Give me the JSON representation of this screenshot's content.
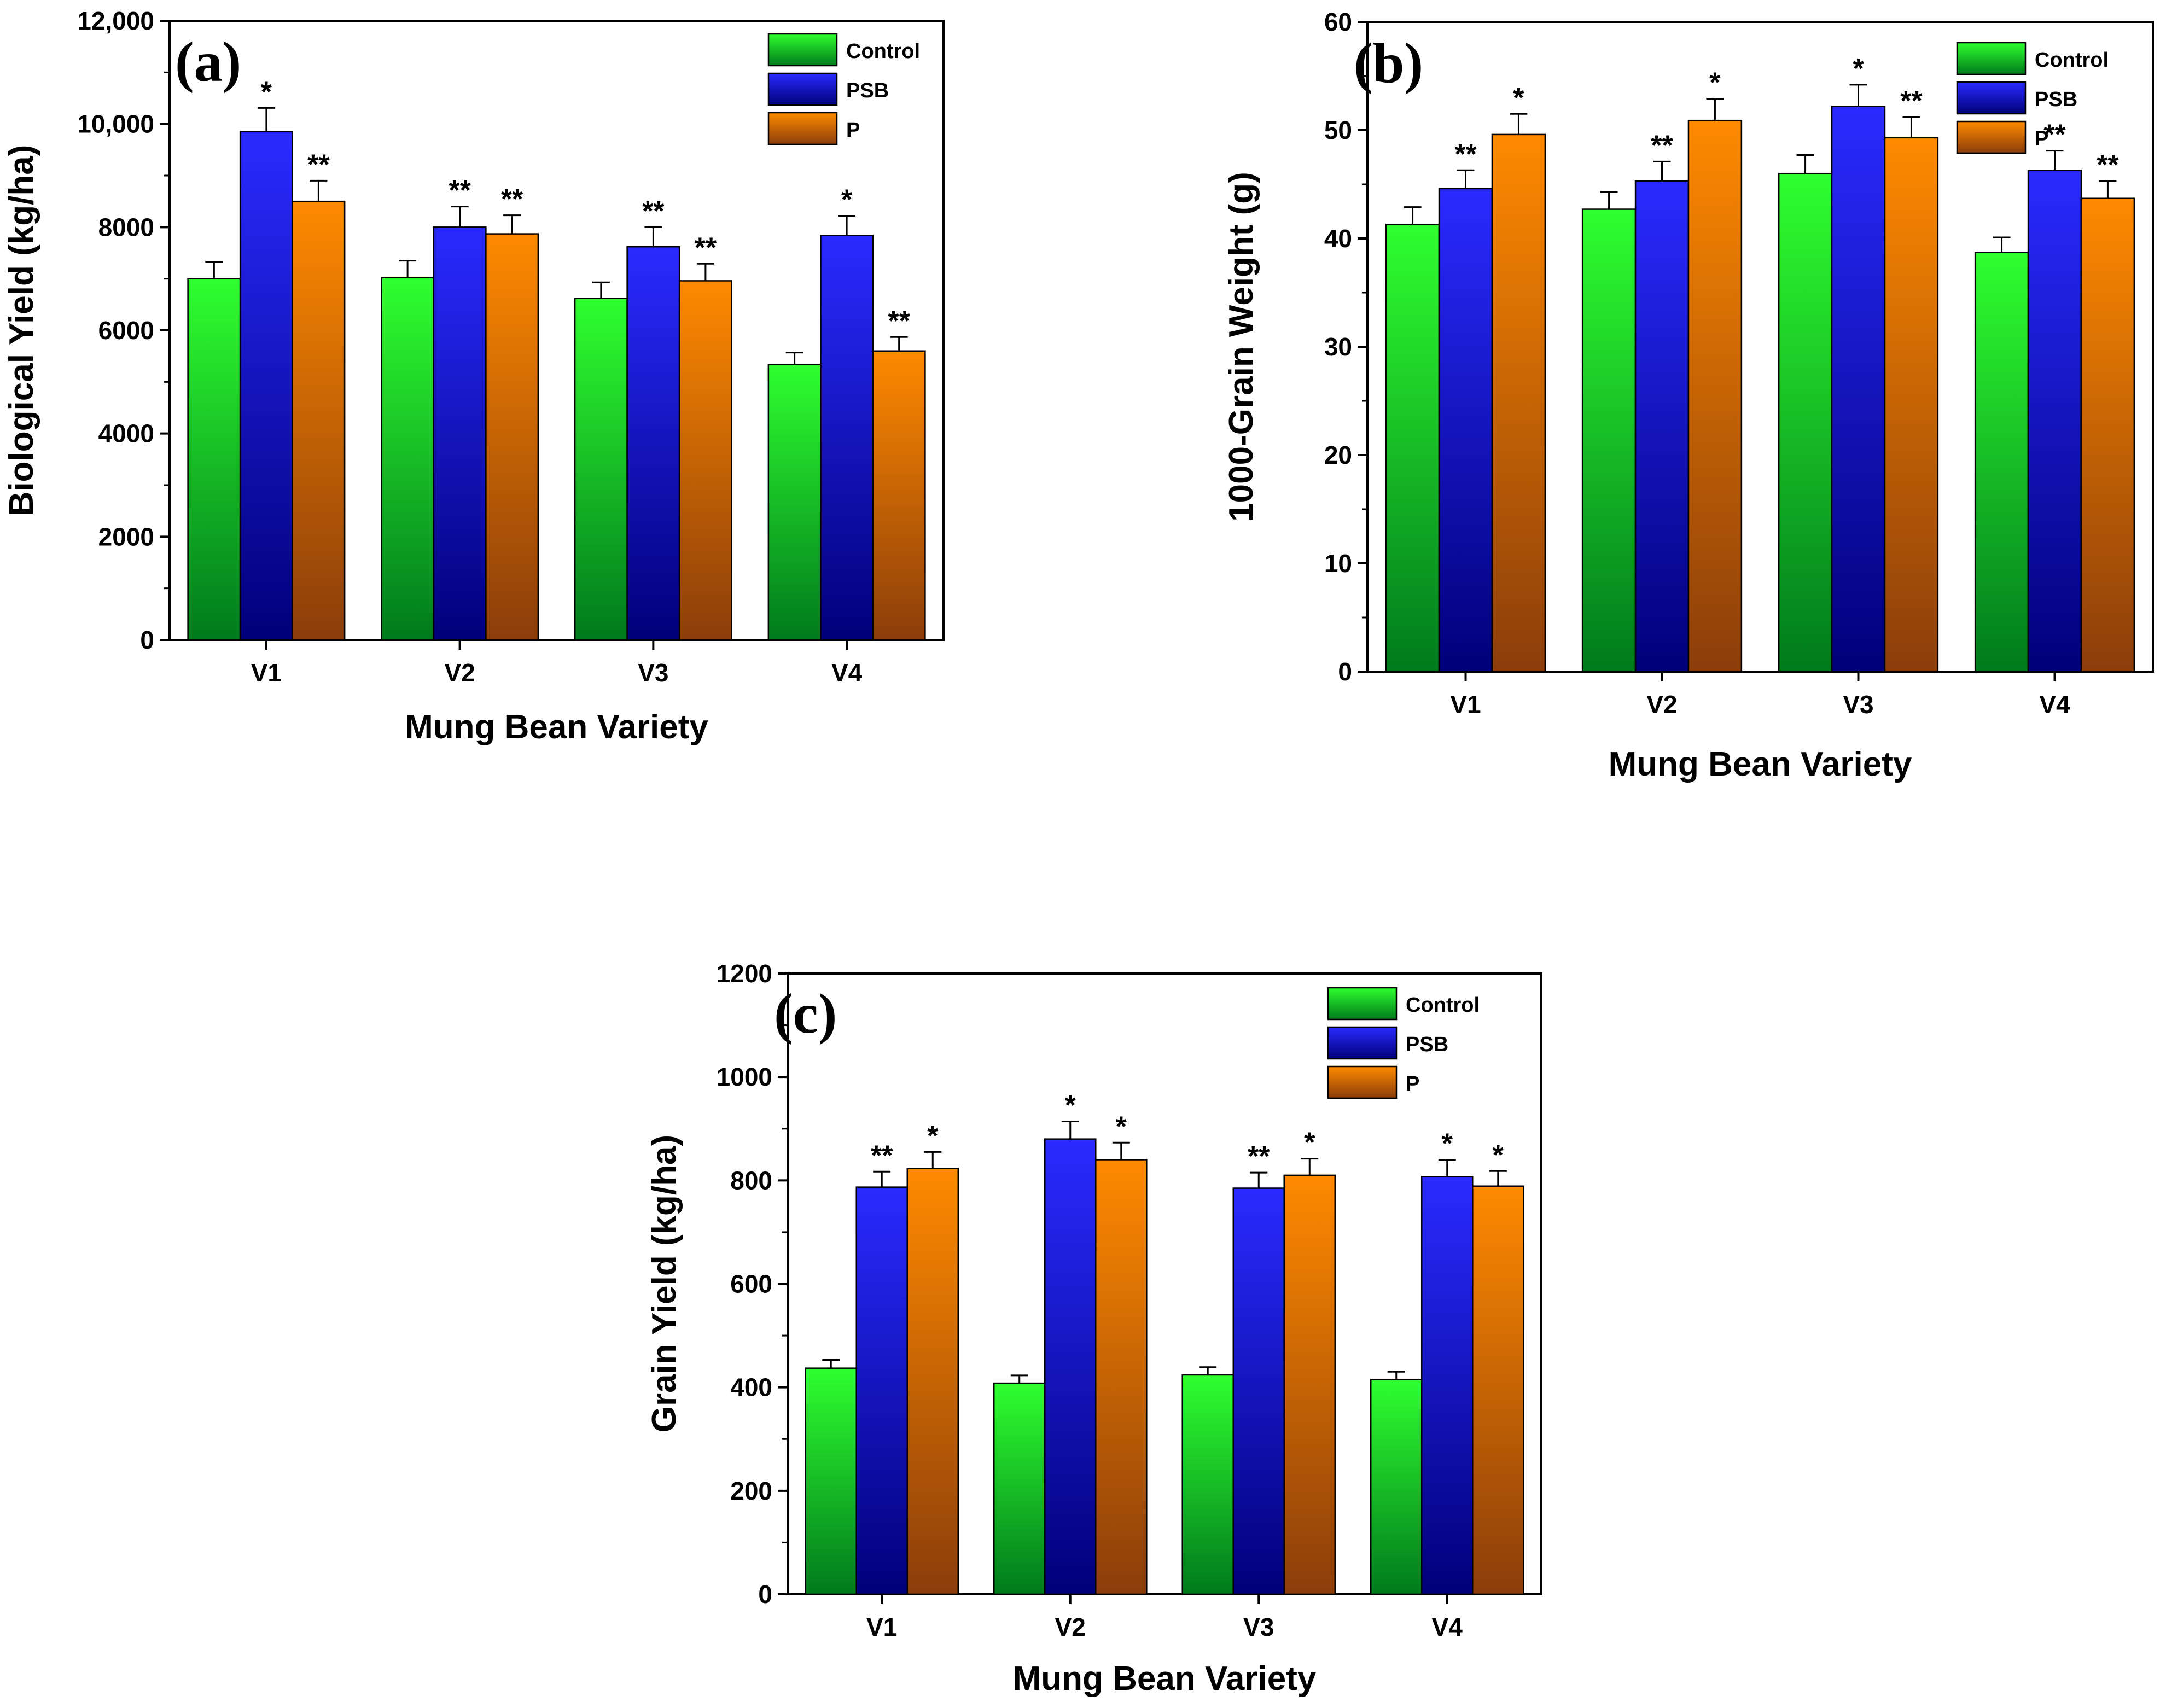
{
  "colors": {
    "control_top": "#2fff2f",
    "control_bottom": "#007a1c",
    "psb_top": "#2a2aff",
    "psb_bottom": "#00007a",
    "p_top": "#ff8a00",
    "p_bottom": "#8b3d0a"
  },
  "chart_data": [
    {
      "type": "bar",
      "panel": "(a)",
      "categories": [
        "V1",
        "V2",
        "V3",
        "V4"
      ],
      "series": [
        {
          "name": "Control",
          "values": [
            7000,
            7020,
            6620,
            5340
          ],
          "errors": [
            330,
            330,
            310,
            230
          ],
          "sig": [
            "",
            "",
            "",
            ""
          ]
        },
        {
          "name": "PSB",
          "values": [
            9850,
            8000,
            7620,
            7840
          ],
          "errors": [
            460,
            400,
            380,
            380
          ],
          "sig": [
            "*",
            "**",
            "**",
            "*"
          ]
        },
        {
          "name": "P",
          "values": [
            8500,
            7870,
            6960,
            5600
          ],
          "errors": [
            400,
            360,
            330,
            270
          ],
          "sig": [
            "**",
            "**",
            "**",
            "**"
          ]
        }
      ],
      "xlabel": "Mung Bean Variety",
      "ylabel": "Biological Yield (kg/ha)",
      "ylim": [
        0,
        12000
      ],
      "yticks": [
        0,
        2000,
        4000,
        6000,
        8000,
        10000,
        12000
      ],
      "ytick_labels": [
        "0",
        "2000",
        "4000",
        "6000",
        "8000",
        "10,000",
        "12,000"
      ],
      "legend": [
        "Control",
        "PSB",
        "P"
      ],
      "legend_position": "top-right"
    },
    {
      "type": "bar",
      "panel": "(b)",
      "categories": [
        "V1",
        "V2",
        "V3",
        "V4"
      ],
      "series": [
        {
          "name": "Control",
          "values": [
            41.3,
            42.7,
            46.0,
            38.7
          ],
          "errors": [
            1.6,
            1.6,
            1.7,
            1.4
          ],
          "sig": [
            "",
            "",
            "",
            ""
          ]
        },
        {
          "name": "PSB",
          "values": [
            44.6,
            45.3,
            52.2,
            46.3
          ],
          "errors": [
            1.7,
            1.8,
            2.0,
            1.8
          ],
          "sig": [
            "**",
            "**",
            "*",
            "**"
          ]
        },
        {
          "name": "P",
          "values": [
            49.6,
            50.9,
            49.3,
            43.7
          ],
          "errors": [
            1.9,
            2.0,
            1.9,
            1.6
          ],
          "sig": [
            "*",
            "*",
            "**",
            "**"
          ]
        }
      ],
      "xlabel": "Mung Bean Variety",
      "ylabel": "1000-Grain Weight (g)",
      "ylim": [
        0,
        60
      ],
      "yticks": [
        0,
        10,
        20,
        30,
        40,
        50,
        60
      ],
      "ytick_labels": [
        "0",
        "10",
        "20",
        "30",
        "40",
        "50",
        "60"
      ],
      "legend": [
        "Control",
        "PSB",
        "P"
      ],
      "legend_position": "top-right"
    },
    {
      "type": "bar",
      "panel": "(c)",
      "categories": [
        "V1",
        "V2",
        "V3",
        "V4"
      ],
      "series": [
        {
          "name": "Control",
          "values": [
            437,
            408,
            424,
            415
          ],
          "errors": [
            16,
            15,
            15,
            15
          ],
          "sig": [
            "",
            "",
            "",
            ""
          ]
        },
        {
          "name": "PSB",
          "values": [
            787,
            880,
            785,
            807
          ],
          "errors": [
            30,
            34,
            30,
            33
          ],
          "sig": [
            "**",
            "*",
            "**",
            "*"
          ]
        },
        {
          "name": "P",
          "values": [
            823,
            840,
            810,
            789
          ],
          "errors": [
            32,
            33,
            32,
            29
          ],
          "sig": [
            "*",
            "*",
            "*",
            "*"
          ]
        }
      ],
      "xlabel": "Mung Bean Variety",
      "ylabel": "Grain Yield (kg/ha)",
      "ylim": [
        0,
        1200
      ],
      "yticks": [
        0,
        200,
        400,
        600,
        800,
        1000,
        1200
      ],
      "ytick_labels": [
        "0",
        "200",
        "400",
        "600",
        "800",
        "1000",
        "1200"
      ],
      "legend": [
        "Control",
        "PSB",
        "P"
      ],
      "legend_position": "top-right"
    }
  ]
}
